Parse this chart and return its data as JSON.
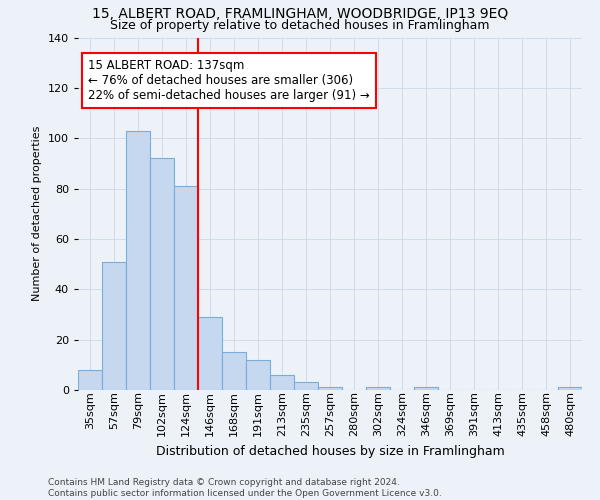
{
  "title1": "15, ALBERT ROAD, FRAMLINGHAM, WOODBRIDGE, IP13 9EQ",
  "title2": "Size of property relative to detached houses in Framlingham",
  "xlabel": "Distribution of detached houses by size in Framlingham",
  "ylabel": "Number of detached properties",
  "footer1": "Contains HM Land Registry data © Crown copyright and database right 2024.",
  "footer2": "Contains public sector information licensed under the Open Government Licence v3.0.",
  "categories": [
    "35sqm",
    "57sqm",
    "79sqm",
    "102sqm",
    "124sqm",
    "146sqm",
    "168sqm",
    "191sqm",
    "213sqm",
    "235sqm",
    "257sqm",
    "280sqm",
    "302sqm",
    "324sqm",
    "346sqm",
    "369sqm",
    "391sqm",
    "413sqm",
    "435sqm",
    "458sqm",
    "480sqm"
  ],
  "values": [
    8,
    51,
    103,
    92,
    81,
    29,
    15,
    12,
    6,
    3,
    1,
    0,
    1,
    0,
    1,
    0,
    0,
    0,
    0,
    0,
    1
  ],
  "bar_color": "#c5d8f0",
  "bar_edge_color": "#7aacda",
  "grid_color": "#d0dcea",
  "background_color": "#edf2f8",
  "annotation_text": "15 ALBERT ROAD: 137sqm\n← 76% of detached houses are smaller (306)\n22% of semi-detached houses are larger (91) →",
  "annotation_box_facecolor": "white",
  "annotation_box_edgecolor": "red",
  "vline_color": "red",
  "vline_x_index": 5,
  "ylim": [
    0,
    140
  ],
  "yticks": [
    0,
    20,
    40,
    60,
    80,
    100,
    120,
    140
  ],
  "title1_fontsize": 10,
  "title2_fontsize": 9,
  "xlabel_fontsize": 9,
  "ylabel_fontsize": 8,
  "tick_fontsize": 8,
  "footer_fontsize": 6.5
}
